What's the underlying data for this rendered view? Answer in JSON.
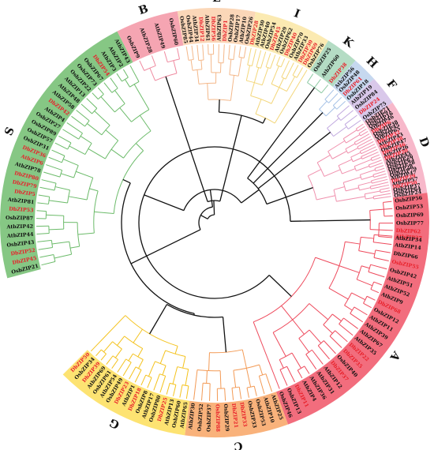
{
  "colors": {
    "background": "#ffffff",
    "backbone": "#111111",
    "dbz_label": "#e8202a",
    "other_label": "#111111"
  },
  "clades": [
    {
      "id": "A",
      "label": "A",
      "band": "#f26d7d",
      "branch": "#ee4a5c",
      "leaves": [
        "AtbZIP27",
        "AtbZIP14",
        "DbZIP66",
        "OsbZIP55",
        "OsbZIP42",
        "AtbZIP51",
        "AtbZIP52",
        "AtbZIP9",
        "DbZIP68",
        "OsbZIP12",
        "AtbZIP11",
        "AtbZIP39",
        "AtbZIP67",
        "AtbZIP35",
        "DbZIP22",
        "DbZIP35",
        "OsbZIP40",
        "DbZIP37",
        "AtbZIP12",
        "AtbZIP31",
        "AtbZIP36",
        "AtbZIP4",
        "DbZIP11",
        "OsbZIP13",
        "OsbZIP46"
      ],
      "red": [
        0,
        3,
        8,
        14,
        15,
        17,
        22
      ]
    },
    {
      "id": "C",
      "label": "C",
      "band": "#f9b27b",
      "branch": "#f39a55",
      "leaves": [
        "AtbZIP25",
        "AtbZIP10",
        "OsbZIP53",
        "OsbZIP33",
        "DbZIP33",
        "DbZIP21",
        "OsbZIP29",
        "OsbZIP88",
        "OsbZIP37",
        "OsbZIP52",
        "AtbZIP30"
      ],
      "red": [
        4,
        5,
        7
      ]
    },
    {
      "id": "G",
      "label": "G",
      "band": "#fde372",
      "branch": "#f4c21c",
      "leaves": [
        "AtbZIP65",
        "OsbZIP60",
        "AtbZIP13",
        "DbZIP25",
        "OsbZIP80",
        "AtbZIP17",
        "OsbZIP8",
        "DbZIP18",
        "AtbZIP1",
        "DbZIP23",
        "OsbZIP49",
        "AtbZIP54",
        "OsbZIP61",
        "AtbZIP69",
        "DbZIP39",
        "OsbZIP34",
        "DbZIP50"
      ],
      "red": [
        3,
        7,
        9,
        14,
        16
      ]
    },
    {
      "id": "S",
      "label": "S",
      "band": "#86c784",
      "branch": "#6cbb6a",
      "leaves": [
        "OsbZIP21",
        "DbZIP45",
        "DbZIP52",
        "OsbZIP43",
        "AtbZIP44",
        "AtbZIP42",
        "OsbZIP87",
        "DbZIP53",
        "AtbZIP81",
        "DbZIP5",
        "DbZIP79",
        "DbZIP80",
        "AtbZIP78",
        "AtbZIP6",
        "DbZIP36",
        "OsbZIP31",
        "OsbZIP57",
        "OsbZIP89",
        "OsbZIP27",
        "AtbZIP4",
        "DbZIP42",
        "AtbZIP58",
        "AtbZIP48",
        "AtbZIP13",
        "OsbZIP22",
        "OsbZIP73",
        "OsbZIP67",
        "DbZIP54",
        "AtbZIP3",
        "AtbZIP2",
        "AtbZIP43"
      ],
      "red": [
        1,
        2,
        7,
        9,
        10,
        11,
        13,
        14,
        20,
        27
      ]
    },
    {
      "id": "B",
      "label": "B",
      "band": "#f5a5b2",
      "branch": "#ef8aa0",
      "leaves": [
        "OsbZIP9",
        "AtbZIP28",
        "AtbZIP49",
        "OsbZIP60"
      ],
      "red": []
    },
    {
      "id": "E",
      "label": "E",
      "band": "#fbd7b8",
      "branch": "#f4b88a",
      "leaves": [
        "OsbZIP85",
        "OsbZIP44",
        "AtbZIP34",
        "DbZIP12",
        "AtbZIP61",
        "DbZIP56",
        "AtbZIP63",
        "DbZIP1",
        "OsbZIP28",
        "OsbZIP17",
        "AtbZIP10",
        "OsbZIP26"
      ],
      "red": [
        3,
        5,
        7
      ]
    },
    {
      "id": "I",
      "label": "I",
      "band": "#fbeab2",
      "branch": "#f3d67a",
      "leaves": [
        "DbZIP28",
        "AtbZIP30",
        "AtbZIP40",
        "OsbZIP54",
        "DbZIP45",
        "AtbZIP29",
        "OsbZIP62",
        "DbZIP40",
        "OsbZIP70",
        "AtbZIP33",
        "DbZIP30",
        "DbZIP69",
        "OsbZIP76"
      ],
      "red": [
        0,
        4,
        7,
        10,
        11
      ]
    },
    {
      "id": "K",
      "label": "K",
      "band": "#b4dcc4",
      "branch": "#8fcaa5",
      "leaves": [
        "OsbZIP25",
        "AtbZIP60",
        "DbZIP38"
      ],
      "red": [
        2
      ]
    },
    {
      "id": "H",
      "label": "H",
      "band": "#c6d8ef",
      "branch": "#a6c2e6",
      "leaves": [
        "AtbZIP56",
        "OsbZIP48",
        "DbZIP61",
        "OsbZIP18"
      ],
      "red": [
        2
      ]
    },
    {
      "id": "F",
      "label": "F",
      "band": "#d9c8ea",
      "branch": "#c1a9df",
      "leaves": [
        "AtbZIP19",
        "OsbZIP84",
        "DbZIP24",
        "OsbZIP75"
      ],
      "red": [
        2
      ]
    },
    {
      "id": "D",
      "label": "D",
      "band": "#f7b8ca",
      "branch": "#f090ad",
      "leaves": [
        "OsbZIP71",
        "OsbZIP91",
        "OsbZIP16",
        "AtbZIP46",
        "DbZIP6",
        "OsbZIP38",
        "OsbZIP45",
        "AtbZIP65",
        "DbZIP32",
        "AtbZIP43",
        "DbZIP38",
        "OsbZIP47",
        "DbZIP46",
        "AtbZIP26",
        "DbZIP20",
        "AtbZIP45",
        "OsbZIP26",
        "OsbZIP63",
        "OsbZIP28",
        "DbZIP28",
        "OsbZIP79",
        "AtbZIP47",
        "DbZIP29",
        "AtbZIP57",
        "DbZIP50",
        "OsbZIP37",
        "OsbZIP64",
        "OsbZIP24"
      ],
      "red": [
        4,
        8,
        10,
        12,
        14,
        22,
        24
      ]
    },
    {
      "id": "A2",
      "label": "",
      "band": "#f26d7d",
      "branch": "#ee4a5c",
      "leaves": [
        "OsbZIP56",
        "OsbZIP53",
        "OsbZIP69",
        "OsbZIP77",
        "DbZIP62",
        "AtbZIP34"
      ],
      "red": [
        4
      ]
    }
  ]
}
